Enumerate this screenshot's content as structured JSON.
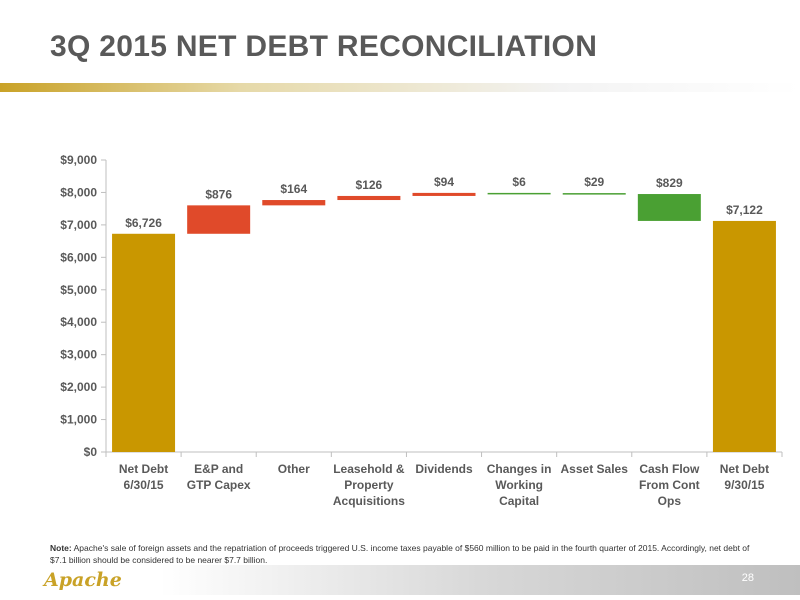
{
  "title": "3Q 2015 NET DEBT RECONCILIATION",
  "note": {
    "label": "Note:",
    "text": "Apache's sale of foreign assets and the repatriation of proceeds triggered U.S. income taxes payable of $560 million to be paid in the fourth quarter of 2015. Accordingly, net debt of $7.1 billion should be considered to be nearer $7.7 billion."
  },
  "footer": {
    "logo_text": "Apache",
    "page_number": "28"
  },
  "colors": {
    "total": "#c99700",
    "increase": "#e04a2a",
    "decrease": "#4aa033",
    "axis": "#bfbfbf",
    "text": "#595959"
  },
  "chart_data": {
    "type": "bar",
    "subtype": "waterfall",
    "categories": [
      [
        "Net Debt",
        "6/30/15"
      ],
      [
        "E&P and",
        "GTP Capex"
      ],
      [
        "Other"
      ],
      [
        "Leasehold &",
        "Property",
        "Acquisitions"
      ],
      [
        "Dividends"
      ],
      [
        "Changes in",
        "Working",
        "Capital"
      ],
      [
        "Asset Sales"
      ],
      [
        "Cash Flow",
        "From Cont",
        "Ops"
      ],
      [
        "Net Debt",
        "9/30/15"
      ]
    ],
    "bars": [
      {
        "kind": "total",
        "start": 0,
        "end": 6726,
        "label": "$6,726"
      },
      {
        "kind": "increase",
        "start": 6726,
        "end": 7602,
        "label": "$876"
      },
      {
        "kind": "increase",
        "start": 7602,
        "end": 7766,
        "label": "$164"
      },
      {
        "kind": "increase",
        "start": 7766,
        "end": 7892,
        "label": "$126"
      },
      {
        "kind": "increase",
        "start": 7892,
        "end": 7986,
        "label": "$94"
      },
      {
        "kind": "decrease",
        "start": 7986,
        "end": 7980,
        "label": "$6"
      },
      {
        "kind": "decrease",
        "start": 7980,
        "end": 7951,
        "label": "$29"
      },
      {
        "kind": "decrease",
        "start": 7951,
        "end": 7122,
        "label": "$829"
      },
      {
        "kind": "total",
        "start": 0,
        "end": 7122,
        "label": "$7,122"
      }
    ],
    "ylim": [
      0,
      9000
    ],
    "yticks": [
      0,
      1000,
      2000,
      3000,
      4000,
      5000,
      6000,
      7000,
      8000,
      9000
    ],
    "ytick_labels": [
      "$0",
      "$1,000",
      "$2,000",
      "$3,000",
      "$4,000",
      "$5,000",
      "$6,000",
      "$7,000",
      "$8,000",
      "$9,000"
    ],
    "grid": false,
    "legend": "none"
  }
}
